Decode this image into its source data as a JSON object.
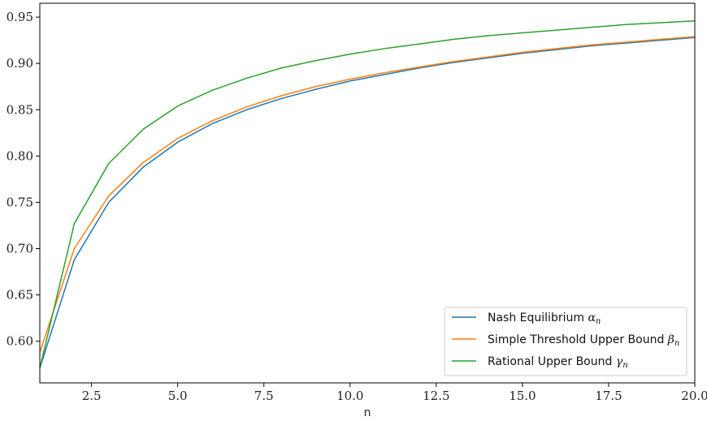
{
  "chart_data": {
    "type": "line",
    "title": "",
    "xlabel": "n",
    "ylabel": "",
    "xlim": [
      1,
      20
    ],
    "ylim": [
      0.555,
      0.965
    ],
    "xticks": [
      2.5,
      5.0,
      7.5,
      10.0,
      12.5,
      15.0,
      17.5,
      20.0
    ],
    "xtick_labels": [
      "2.5",
      "5.0",
      "7.5",
      "10.0",
      "12.5",
      "15.0",
      "17.5",
      "20.0"
    ],
    "yticks": [
      0.6,
      0.65,
      0.7,
      0.75,
      0.8,
      0.85,
      0.9,
      0.95
    ],
    "ytick_labels": [
      "0.60",
      "0.65",
      "0.70",
      "0.75",
      "0.80",
      "0.85",
      "0.90",
      "0.95"
    ],
    "grid": false,
    "legend_position": "bottom-right",
    "x": [
      1,
      2,
      3,
      4,
      5,
      6,
      7,
      8,
      9,
      10,
      11,
      12,
      13,
      14,
      15,
      16,
      17,
      18,
      19,
      20
    ],
    "series": [
      {
        "name": "Nash Equilibrium",
        "symbol": "α",
        "subscript": "n",
        "color": "#1f77b4",
        "values": [
          0.571,
          0.688,
          0.75,
          0.788,
          0.815,
          0.835,
          0.85,
          0.862,
          0.872,
          0.881,
          0.888,
          0.895,
          0.901,
          0.906,
          0.911,
          0.915,
          0.919,
          0.922,
          0.925,
          0.928
        ]
      },
      {
        "name": "Simple Threshold Upper Bound",
        "symbol": "β",
        "subscript": "n",
        "color": "#ff7f0e",
        "values": [
          0.588,
          0.7,
          0.757,
          0.793,
          0.819,
          0.838,
          0.853,
          0.865,
          0.875,
          0.883,
          0.89,
          0.896,
          0.902,
          0.907,
          0.912,
          0.916,
          0.92,
          0.923,
          0.926,
          0.929
        ]
      },
      {
        "name": "Rational Upper Bound",
        "symbol": "γ",
        "subscript": "n",
        "color": "#2ca02c",
        "values": [
          0.571,
          0.727,
          0.792,
          0.829,
          0.854,
          0.871,
          0.884,
          0.895,
          0.903,
          0.91,
          0.916,
          0.921,
          0.926,
          0.93,
          0.933,
          0.936,
          0.939,
          0.942,
          0.944,
          0.946
        ]
      }
    ]
  }
}
